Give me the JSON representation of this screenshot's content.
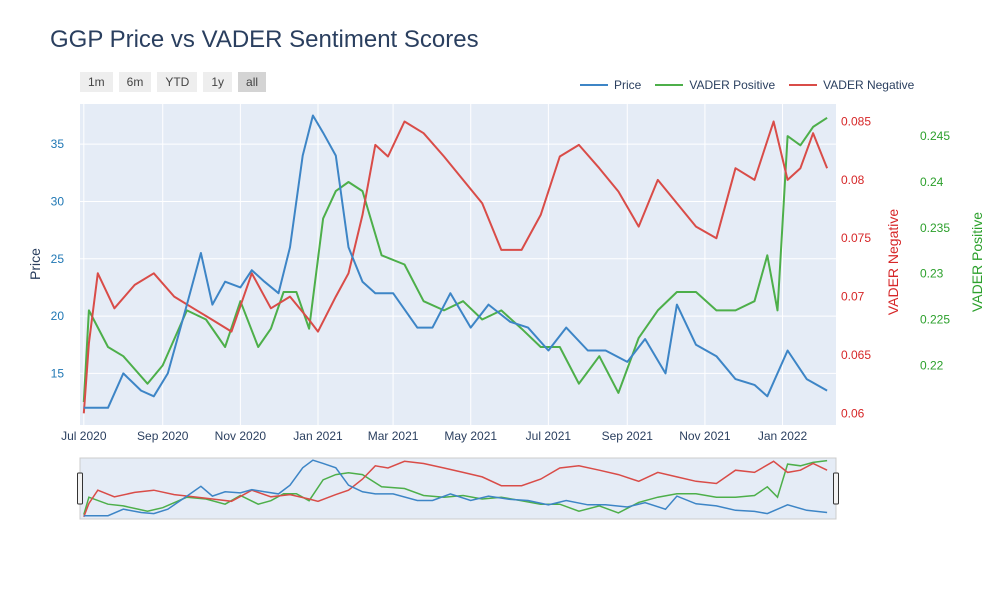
{
  "chart_data": {
    "type": "line",
    "title": "GGP Price vs VADER Sentiment Scores",
    "range_buttons": [
      "1m",
      "6m",
      "YTD",
      "1y",
      "all"
    ],
    "active_range": "all",
    "x_ticks": [
      "Jul 2020",
      "Sep 2020",
      "Nov 2020",
      "Jan 2021",
      "Mar 2021",
      "May 2021",
      "Jul 2021",
      "Sep 2021",
      "Nov 2021",
      "Jan 2022"
    ],
    "y_axes": {
      "price": {
        "label": "Price",
        "range": [
          10.5,
          38.5
        ],
        "ticks": [
          15,
          20,
          25,
          30,
          35
        ],
        "color": "#1f77b4"
      },
      "negative": {
        "label": "VADER Negative",
        "range": [
          0.059,
          0.0865
        ],
        "ticks": [
          "0.06",
          "0.065",
          "0.07",
          "0.075",
          "0.08",
          "0.085"
        ],
        "tick_values": [
          0.06,
          0.065,
          0.07,
          0.075,
          0.08,
          0.085
        ],
        "color": "#d62728"
      },
      "positive": {
        "label": "VADER Positive",
        "range": [
          0.2135,
          0.2485
        ],
        "ticks": [
          "0.22",
          "0.225",
          "0.23",
          "0.235",
          "0.24",
          "0.245"
        ],
        "tick_values": [
          0.22,
          0.225,
          0.23,
          0.235,
          0.24,
          0.245
        ],
        "color": "#2ca02c"
      }
    },
    "series": [
      {
        "name": "Price",
        "color": "#3d85c6",
        "axis": "price",
        "x": [
          "2020-07-01",
          "2020-07-20",
          "2020-08-01",
          "2020-08-15",
          "2020-08-25",
          "2020-09-05",
          "2020-09-20",
          "2020-10-01",
          "2020-10-10",
          "2020-10-20",
          "2020-11-01",
          "2020-11-10",
          "2020-11-20",
          "2020-12-01",
          "2020-12-10",
          "2020-12-20",
          "2020-12-28",
          "2021-01-05",
          "2021-01-15",
          "2021-01-25",
          "2021-02-05",
          "2021-02-15",
          "2021-03-01",
          "2021-03-20",
          "2021-04-01",
          "2021-04-15",
          "2021-05-01",
          "2021-05-15",
          "2021-06-01",
          "2021-06-15",
          "2021-07-01",
          "2021-07-15",
          "2021-08-01",
          "2021-08-15",
          "2021-09-01",
          "2021-09-15",
          "2021-10-01",
          "2021-10-10",
          "2021-10-25",
          "2021-11-10",
          "2021-11-25",
          "2021-12-10",
          "2021-12-20",
          "2022-01-05",
          "2022-01-20",
          "2022-02-05"
        ],
        "values": [
          12,
          12,
          15,
          13.5,
          13,
          15,
          21,
          25.5,
          21,
          23,
          22.5,
          24,
          23,
          22,
          26,
          34,
          37.5,
          36,
          34,
          26,
          23,
          22,
          22,
          19,
          19,
          22,
          19,
          21,
          19.5,
          19,
          17,
          19,
          17,
          17,
          16,
          18,
          15,
          21,
          17.5,
          16.5,
          14.5,
          14,
          13,
          17,
          14.5,
          13.5
        ]
      },
      {
        "name": "VADER Positive",
        "color": "#4daf4a",
        "axis": "positive",
        "x": [
          "2020-07-01",
          "2020-07-05",
          "2020-07-20",
          "2020-08-01",
          "2020-08-20",
          "2020-09-01",
          "2020-09-20",
          "2020-10-05",
          "2020-10-20",
          "2020-11-01",
          "2020-11-15",
          "2020-11-25",
          "2020-12-05",
          "2020-12-15",
          "2020-12-25",
          "2021-01-05",
          "2021-01-15",
          "2021-01-25",
          "2021-02-05",
          "2021-02-20",
          "2021-03-10",
          "2021-03-25",
          "2021-04-10",
          "2021-04-25",
          "2021-05-10",
          "2021-05-25",
          "2021-06-10",
          "2021-06-25",
          "2021-07-10",
          "2021-07-25",
          "2021-08-10",
          "2021-08-25",
          "2021-09-10",
          "2021-09-25",
          "2021-10-10",
          "2021-10-25",
          "2021-11-10",
          "2021-11-25",
          "2021-12-10",
          "2021-12-20",
          "2021-12-28",
          "2022-01-05",
          "2022-01-15",
          "2022-01-25",
          "2022-02-05"
        ],
        "values": [
          0.216,
          0.226,
          0.222,
          0.221,
          0.218,
          0.22,
          0.226,
          0.225,
          0.222,
          0.227,
          0.222,
          0.224,
          0.228,
          0.228,
          0.224,
          0.236,
          0.239,
          0.24,
          0.239,
          0.232,
          0.231,
          0.227,
          0.226,
          0.227,
          0.225,
          0.226,
          0.224,
          0.222,
          0.222,
          0.218,
          0.221,
          0.217,
          0.223,
          0.226,
          0.228,
          0.228,
          0.226,
          0.226,
          0.227,
          0.232,
          0.226,
          0.245,
          0.244,
          0.246,
          0.247
        ]
      },
      {
        "name": "VADER Negative",
        "color": "#d94c48",
        "axis": "negative",
        "x": [
          "2020-07-01",
          "2020-07-05",
          "2020-07-12",
          "2020-07-25",
          "2020-08-10",
          "2020-08-25",
          "2020-09-10",
          "2020-09-25",
          "2020-10-10",
          "2020-10-25",
          "2020-11-10",
          "2020-11-25",
          "2020-12-10",
          "2020-12-25",
          "2021-01-01",
          "2021-01-15",
          "2021-01-25",
          "2021-02-05",
          "2021-02-15",
          "2021-02-25",
          "2021-03-10",
          "2021-03-25",
          "2021-04-10",
          "2021-04-25",
          "2021-05-10",
          "2021-05-25",
          "2021-06-10",
          "2021-06-25",
          "2021-07-10",
          "2021-07-25",
          "2021-08-10",
          "2021-08-25",
          "2021-09-10",
          "2021-09-25",
          "2021-10-10",
          "2021-10-25",
          "2021-11-10",
          "2021-11-25",
          "2021-12-10",
          "2021-12-25",
          "2022-01-05",
          "2022-01-15",
          "2022-01-25",
          "2022-02-05"
        ],
        "values": [
          0.06,
          0.066,
          0.072,
          0.069,
          0.071,
          0.072,
          0.07,
          0.069,
          0.068,
          0.067,
          0.072,
          0.069,
          0.07,
          0.068,
          0.067,
          0.07,
          0.072,
          0.077,
          0.083,
          0.082,
          0.085,
          0.084,
          0.082,
          0.08,
          0.078,
          0.074,
          0.074,
          0.077,
          0.082,
          0.083,
          0.081,
          0.079,
          0.076,
          0.08,
          0.078,
          0.076,
          0.075,
          0.081,
          0.08,
          0.085,
          0.08,
          0.081,
          0.084,
          0.081
        ]
      }
    ],
    "legend": [
      "Price",
      "VADER Positive",
      "VADER Negative"
    ],
    "legend_position": "top-right",
    "grid": true,
    "has_range_slider": true
  }
}
